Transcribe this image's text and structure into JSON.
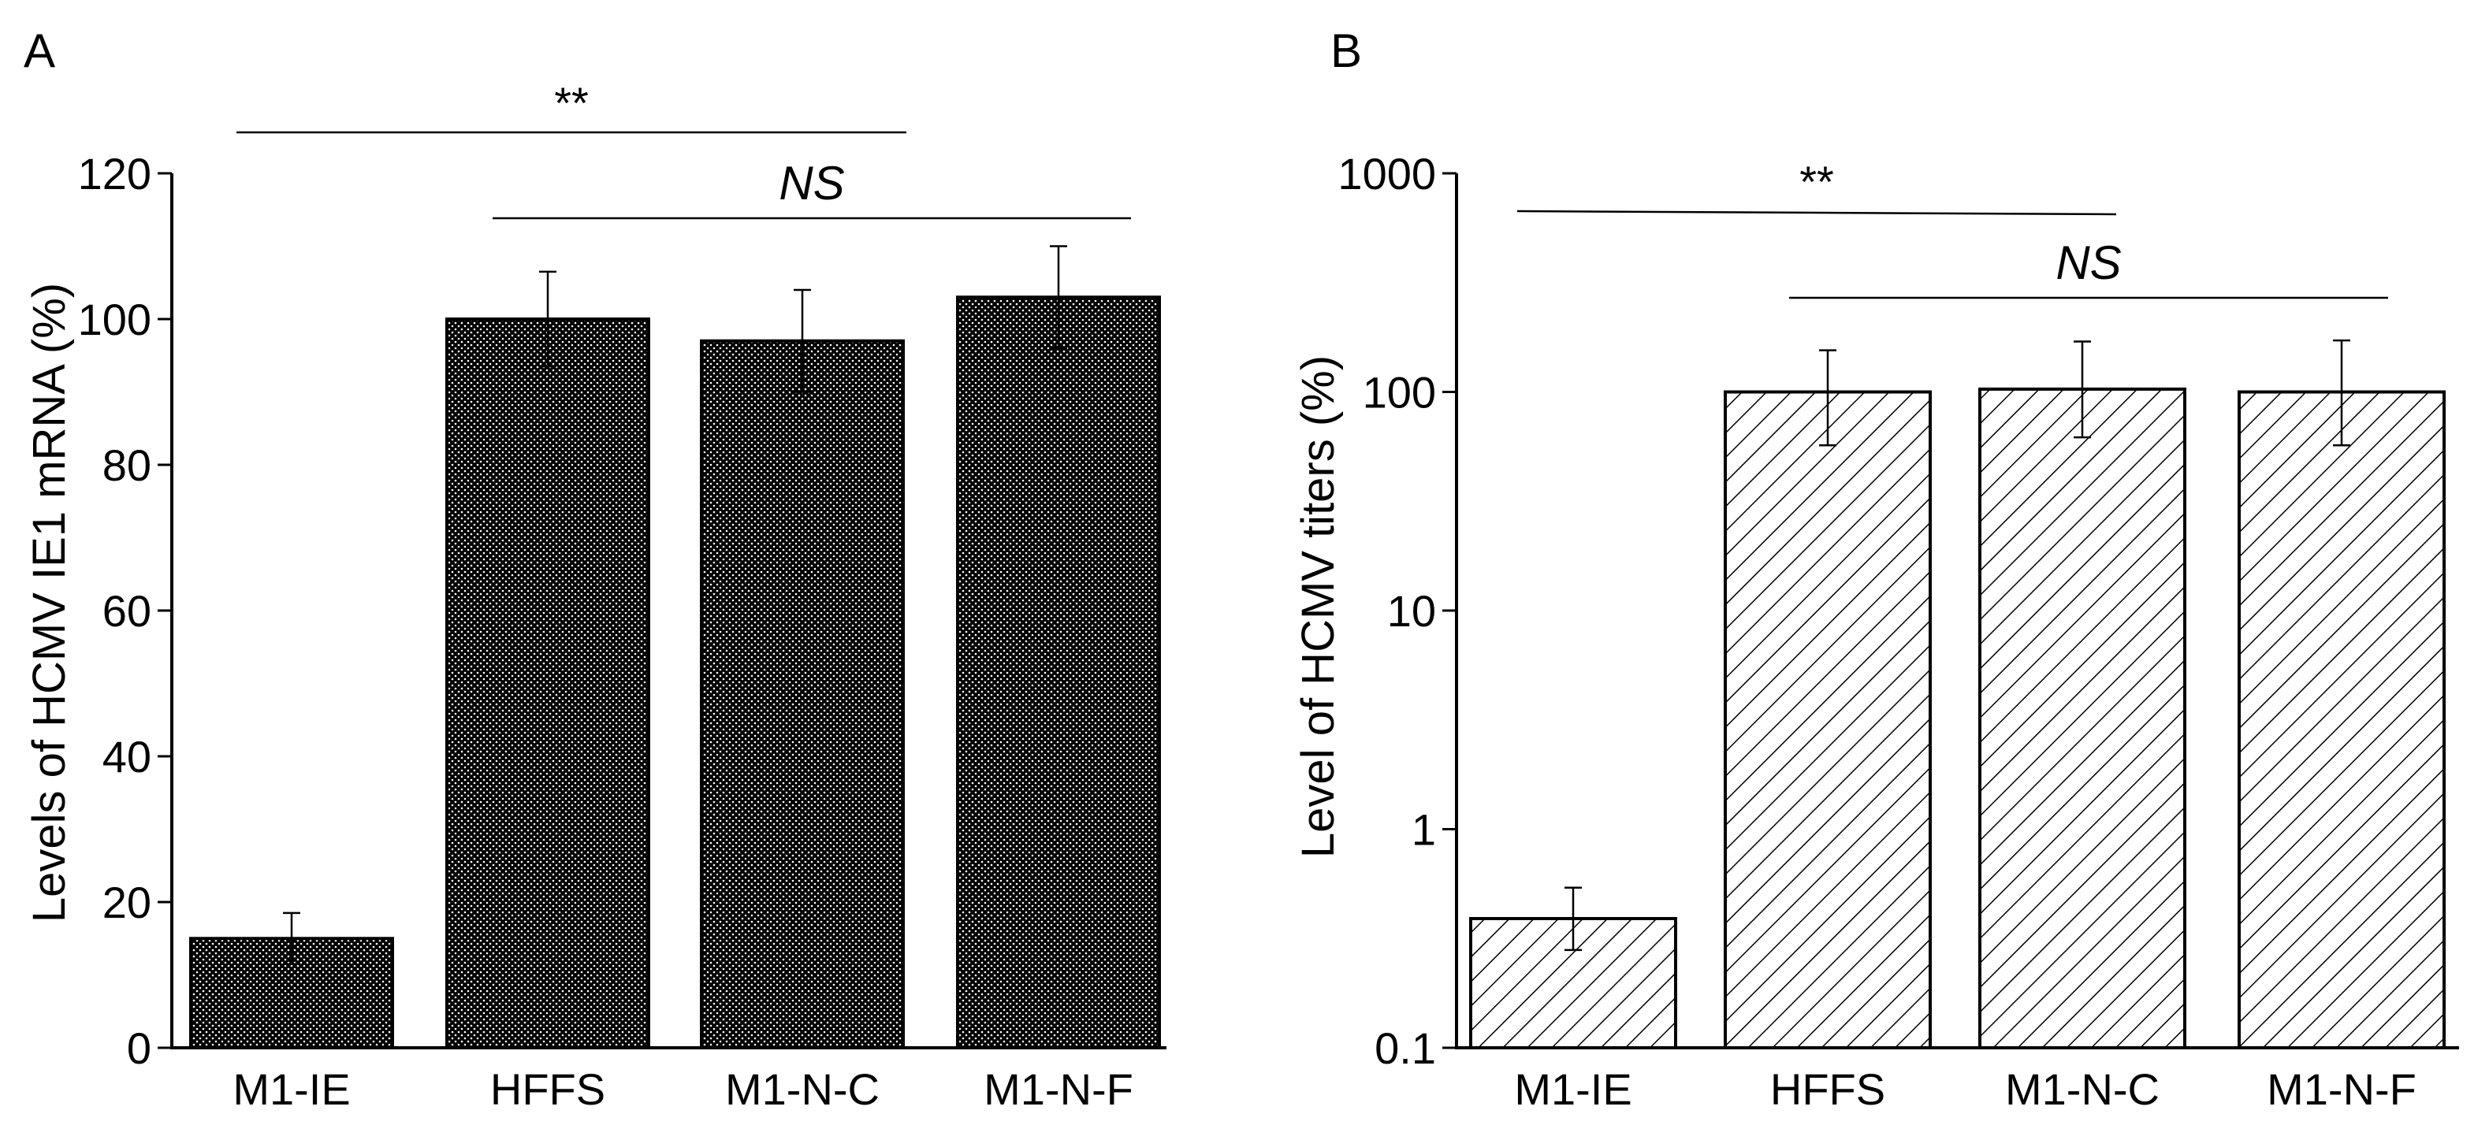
{
  "chart_data": [
    {
      "panel": "A",
      "type": "bar",
      "ylabel": "Levels of  HCMV IE1 mRNA (%)",
      "xlabel": "",
      "scale": "linear",
      "ylim": [
        0,
        120
      ],
      "yticks": [
        0,
        20,
        40,
        60,
        80,
        100,
        120
      ],
      "ytick_labels": [
        "0",
        "20",
        "40",
        "60",
        "80",
        "100",
        "120"
      ],
      "categories": [
        "M1-IE",
        "HFFS",
        "M1-N-C",
        "M1-N-F"
      ],
      "values": [
        15,
        100,
        97,
        103
      ],
      "errors": [
        3.5,
        6.5,
        7,
        7
      ],
      "pattern": "dots",
      "significance": [
        {
          "label": "**",
          "from": "M1-IE",
          "to": "M1-N-C",
          "italic": false
        },
        {
          "label": "NS",
          "from": "HFFS",
          "to": "M1-N-F",
          "italic": true
        }
      ]
    },
    {
      "panel": "B",
      "type": "bar",
      "ylabel": "Level of  HCMV titers (%)",
      "xlabel": "",
      "scale": "log",
      "ylim": [
        0.1,
        1000
      ],
      "yticks": [
        0.1,
        1,
        10,
        100,
        1000
      ],
      "ytick_labels": [
        "0.1",
        "1",
        "10",
        "100",
        "1000"
      ],
      "categories": [
        "M1-IE",
        "HFFS",
        "M1-N-C",
        "M1-N-F"
      ],
      "values": [
        0.39,
        100,
        103,
        100
      ],
      "err_low": [
        0.28,
        57,
        62,
        57
      ],
      "err_high": [
        0.54,
        155,
        170,
        172
      ],
      "pattern": "hatch",
      "significance": [
        {
          "label": "**",
          "from": "M1-IE",
          "to": "M1-N-C",
          "italic": false
        },
        {
          "label": "NS",
          "from": "HFFS",
          "to": "M1-N-F",
          "italic": true
        }
      ]
    }
  ]
}
